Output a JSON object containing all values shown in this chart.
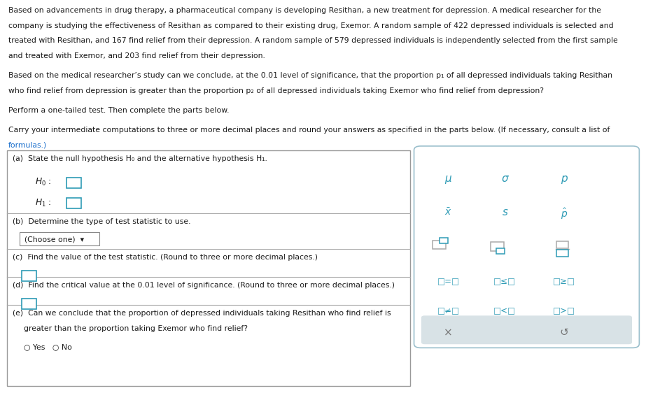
{
  "bg_color": "#ffffff",
  "teal_color": "#2e9bb5",
  "black": "#1a1a1a",
  "link_color": "#1a6fcc",
  "gray": "#777777",
  "border_color": "#aaaaaa",
  "panel_border": "#9abfcc",
  "btn_bg": "#d8e2e6",
  "paragraph1": "Based on advancements in drug therapy, a pharmaceutical company is developing Resithan, a new treatment for depression. A medical researcher for the",
  "paragraph1b": "company is studying the effectiveness of Resithan as compared to their existing drug, Exemor. A random sample of 422 depressed individuals is selected and",
  "paragraph1c": "treated with Resithan, and 167 find relief from their depression. A random sample of 579 depressed individuals is independently selected from the first sample",
  "paragraph1d": "and treated with Exemor, and 203 find relief from their depression.",
  "paragraph2": "Based on the medical researcher’s study can we conclude, at the 0.01 level of significance, that the proportion p₁ of all depressed individuals taking Resithan",
  "paragraph2b": "who find relief from depression is greater than the proportion p₂ of all depressed individuals taking Exemor who find relief from depression?",
  "paragraph3": "Perform a one-tailed test. Then complete the parts below.",
  "paragraph4": "Carry your intermediate computations to three or more decimal places and round your answers as specified in the parts below. (If necessary, consult a list of",
  "paragraph4b": "formulas.)",
  "part_a": "(a)  State the null hypothesis H₀ and the alternative hypothesis H₁.",
  "part_b": "(b)  Determine the type of test statistic to use.",
  "dropdown": "(Choose one)  ▾",
  "part_c": "(c)  Find the value of the test statistic. (Round to three or more decimal places.)",
  "part_d": "(d)  Find the critical value at the 0.01 level of significance. (Round to three or more decimal places.)",
  "part_e1": "(e)  Can we conclude that the proportion of depressed individuals taking Resithan who find relief is",
  "part_e2": "greater than the proportion taking Exemor who find relief?",
  "yes_no": "○ Yes   ○ No",
  "fs_main": 7.8,
  "fs_sym": 10.0
}
